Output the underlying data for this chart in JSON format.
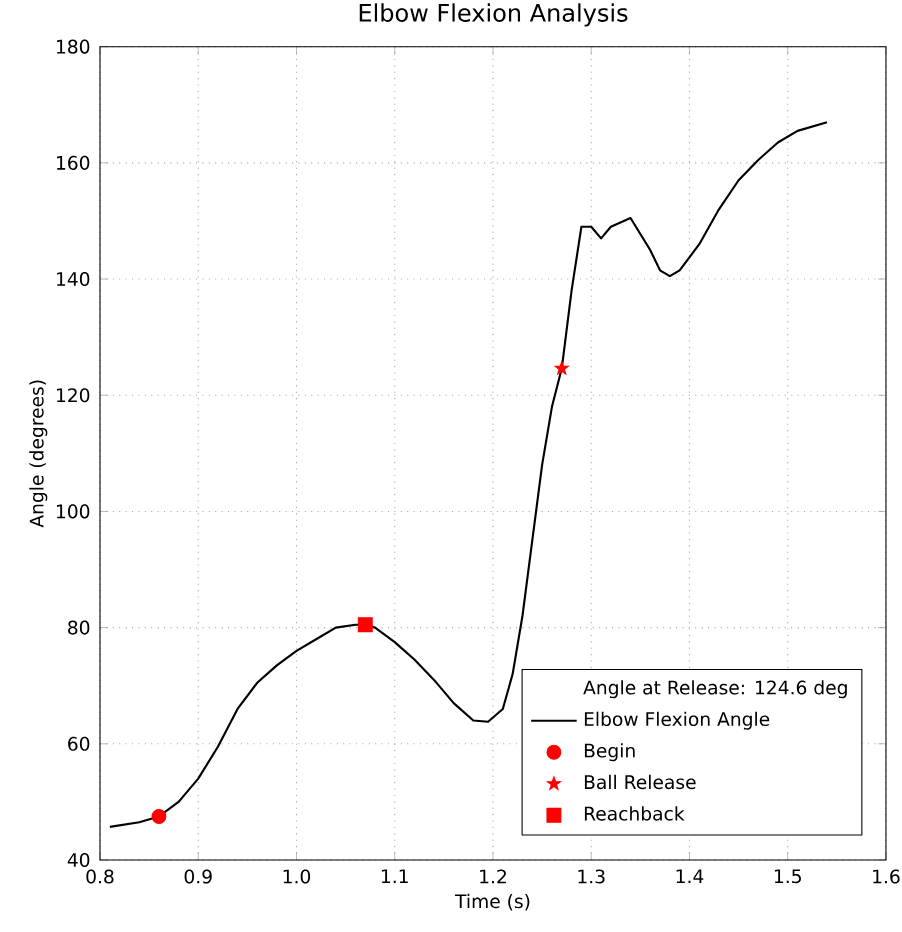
{
  "chart_data": {
    "type": "line",
    "title": "Elbow Flexion Analysis",
    "xlabel": "Time (s)",
    "ylabel": "Angle (degrees)",
    "xlim": [
      0.8,
      1.6
    ],
    "xticks": [
      0.8,
      0.9,
      {
        "value": 1.0,
        "label": "1.0"
      },
      1.1,
      1.2,
      1.3,
      1.4,
      1.5,
      1.6
    ],
    "ylim": [
      40,
      180
    ],
    "yticks": [
      40,
      60,
      80,
      100,
      120,
      140,
      160,
      180
    ],
    "grid": true,
    "legend": "bottom right",
    "legend_title": "Angle at Release: 124.6 deg",
    "series": [
      {
        "name": "Elbow Flexion Angle",
        "color": "#000000",
        "marker": "none",
        "x": [
          0.81,
          0.84,
          0.86,
          0.88,
          0.9,
          0.92,
          0.94,
          0.96,
          0.98,
          1.0,
          1.02,
          1.04,
          1.06,
          1.07,
          1.08,
          1.1,
          1.12,
          1.14,
          1.16,
          1.18,
          1.195,
          1.21,
          1.22,
          1.23,
          1.24,
          1.25,
          1.26,
          1.27,
          1.28,
          1.29,
          1.3,
          1.31,
          1.32,
          1.34,
          1.36,
          1.37,
          1.38,
          1.39,
          1.41,
          1.43,
          1.45,
          1.47,
          1.49,
          1.51,
          1.54
        ],
        "values": [
          45.7,
          46.5,
          47.5,
          50,
          54,
          59.5,
          66,
          70.5,
          73.5,
          76,
          78,
          80,
          80.5,
          80.5,
          80,
          77.5,
          74.5,
          71,
          67,
          64,
          63.8,
          66,
          72,
          82,
          95,
          108,
          118,
          124.6,
          138,
          149,
          149,
          147,
          149,
          150.5,
          145,
          141.5,
          140.5,
          141.5,
          146,
          152,
          157,
          160.5,
          163.5,
          165.5,
          167
        ]
      },
      {
        "name": "Begin",
        "type": "scatter",
        "color": "#ff0000",
        "marker": "circle",
        "x": [
          0.86
        ],
        "values": [
          47.5
        ]
      },
      {
        "name": "Ball Release",
        "type": "scatter",
        "color": "#ff0000",
        "marker": "star",
        "x": [
          1.27
        ],
        "values": [
          124.6
        ]
      },
      {
        "name": "Reachback",
        "type": "scatter",
        "color": "#ff0000",
        "marker": "square",
        "x": [
          1.07
        ],
        "values": [
          80.5
        ]
      }
    ]
  }
}
